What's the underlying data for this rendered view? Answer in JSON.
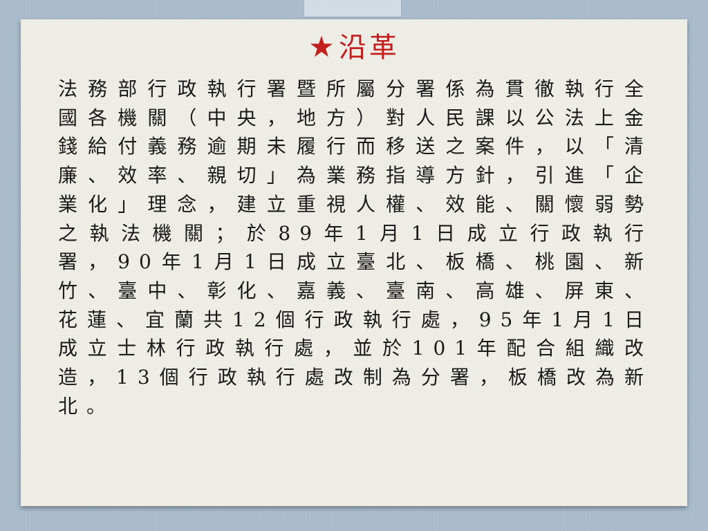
{
  "title": {
    "star_icon": "★",
    "text": "沿革"
  },
  "body": {
    "text": "法務部行政執行署暨所屬分署係為貫徹執行全國各機關（中央，地方）對人民課以公法上金錢給付義務逾期未履行而移送之案件，以「清廉、效率、親切」為業務指導方針，引進「企業化」理念，建立重視人權、效能、關懷弱勢之執法機關；於89年1月1日成立行政執行署，90年1月1日成立臺北、板橋、桃園、新竹、臺中、彰化、嘉義、臺南、高雄、屏東、花蓮、宜蘭共12個行政執行處，95年1月1日成立士林行政執行處，並於101年配合組織改造，13個行政執行處改制為分署，板橋改為新北。"
  },
  "colors": {
    "accent": "#c21f1f",
    "background": "#a9bccd",
    "paper": "#f1f0e8"
  }
}
